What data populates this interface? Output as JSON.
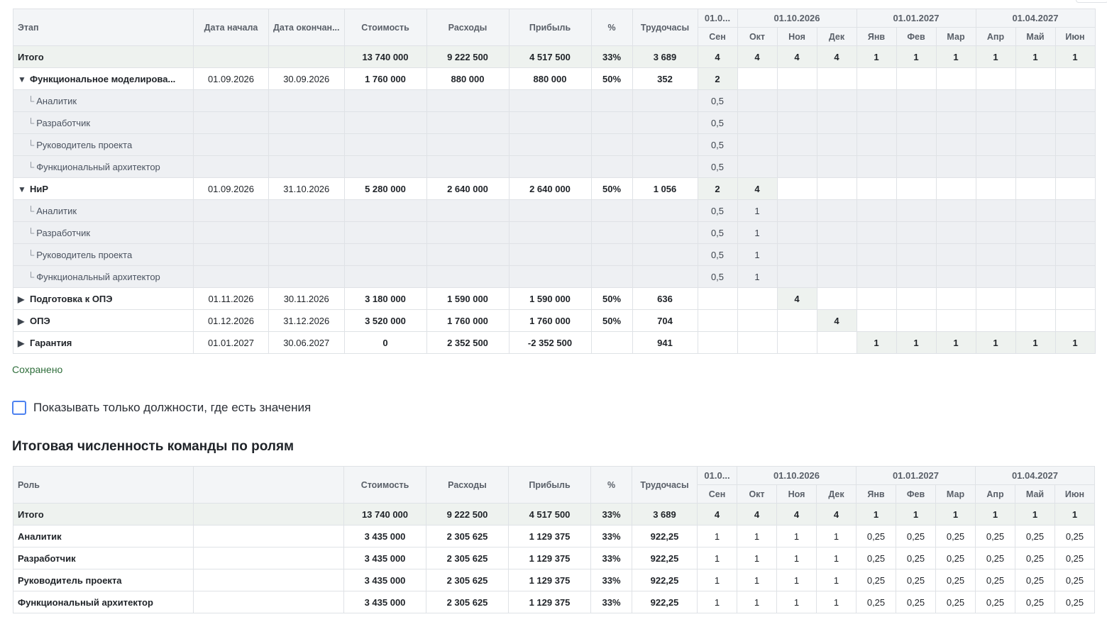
{
  "months": [
    "Сен",
    "Окт",
    "Ноя",
    "Дек",
    "Янв",
    "Фев",
    "Мар",
    "Апр",
    "Май",
    "Июн"
  ],
  "year_groups": [
    "01.0...",
    "01.10.2026",
    "01.01.2027",
    "01.04.2027"
  ],
  "table1": {
    "headers": {
      "stage": "Этап",
      "start": "Дата начала",
      "end": "Дата окончан...",
      "cost": "Стоимость",
      "expenses": "Расходы",
      "profit": "Прибыль",
      "pct": "%",
      "hours": "Трудочасы"
    },
    "rows": [
      {
        "type": "total",
        "name": "Итого",
        "start": "",
        "end": "",
        "cost": "13 740 000",
        "expenses": "9 222 500",
        "profit": "4 517 500",
        "pct": "33%",
        "hours": "3 689",
        "months": [
          "4",
          "4",
          "4",
          "4",
          "1",
          "1",
          "1",
          "1",
          "1",
          "1"
        ]
      },
      {
        "type": "group",
        "expanded": true,
        "name": "Функциональное моделирова...",
        "start": "01.09.2026",
        "end": "30.09.2026",
        "cost": "1 760 000",
        "expenses": "880 000",
        "profit": "880 000",
        "pct": "50%",
        "hours": "352",
        "months": [
          "2",
          "",
          "",
          "",
          "",
          "",
          "",
          "",
          "",
          ""
        ]
      },
      {
        "type": "sub",
        "name": "Аналитик",
        "months": [
          "0,5",
          "",
          "",
          "",
          "",
          "",
          "",
          "",
          "",
          ""
        ]
      },
      {
        "type": "sub",
        "name": "Разработчик",
        "months": [
          "0,5",
          "",
          "",
          "",
          "",
          "",
          "",
          "",
          "",
          ""
        ]
      },
      {
        "type": "sub",
        "name": "Руководитель проекта",
        "months": [
          "0,5",
          "",
          "",
          "",
          "",
          "",
          "",
          "",
          "",
          ""
        ]
      },
      {
        "type": "sub",
        "name": "Функциональный архитектор",
        "months": [
          "0,5",
          "",
          "",
          "",
          "",
          "",
          "",
          "",
          "",
          ""
        ]
      },
      {
        "type": "group",
        "expanded": true,
        "name": "НиР",
        "start": "01.09.2026",
        "end": "31.10.2026",
        "cost": "5 280 000",
        "expenses": "2 640 000",
        "profit": "2 640 000",
        "pct": "50%",
        "hours": "1 056",
        "months": [
          "2",
          "4",
          "",
          "",
          "",
          "",
          "",
          "",
          "",
          ""
        ]
      },
      {
        "type": "sub",
        "name": "Аналитик",
        "months": [
          "0,5",
          "1",
          "",
          "",
          "",
          "",
          "",
          "",
          "",
          ""
        ]
      },
      {
        "type": "sub",
        "name": "Разработчик",
        "months": [
          "0,5",
          "1",
          "",
          "",
          "",
          "",
          "",
          "",
          "",
          ""
        ]
      },
      {
        "type": "sub",
        "name": "Руководитель проекта",
        "months": [
          "0,5",
          "1",
          "",
          "",
          "",
          "",
          "",
          "",
          "",
          ""
        ]
      },
      {
        "type": "sub",
        "name": "Функциональный архитектор",
        "months": [
          "0,5",
          "1",
          "",
          "",
          "",
          "",
          "",
          "",
          "",
          ""
        ]
      },
      {
        "type": "group",
        "expanded": false,
        "name": "Подготовка к ОПЭ",
        "start": "01.11.2026",
        "end": "30.11.2026",
        "cost": "3 180 000",
        "expenses": "1 590 000",
        "profit": "1 590 000",
        "pct": "50%",
        "hours": "636",
        "months": [
          "",
          "",
          "4",
          "",
          "",
          "",
          "",
          "",
          "",
          ""
        ]
      },
      {
        "type": "group",
        "expanded": false,
        "name": "ОПЭ",
        "start": "01.12.2026",
        "end": "31.12.2026",
        "cost": "3 520 000",
        "expenses": "1 760 000",
        "profit": "1 760 000",
        "pct": "50%",
        "hours": "704",
        "months": [
          "",
          "",
          "",
          "4",
          "",
          "",
          "",
          "",
          "",
          ""
        ]
      },
      {
        "type": "group",
        "expanded": false,
        "name": "Гарантия",
        "start": "01.01.2027",
        "end": "30.06.2027",
        "cost": "0",
        "expenses": "2 352 500",
        "profit": "-2 352 500",
        "pct": "",
        "hours": "941",
        "months": [
          "",
          "",
          "",
          "",
          "1",
          "1",
          "1",
          "1",
          "1",
          "1"
        ]
      }
    ]
  },
  "status": {
    "saved": "Сохранено"
  },
  "filter": {
    "label": "Показывать только должности, где есть значения"
  },
  "section2": {
    "title": "Итоговая численность команды по ролям"
  },
  "table2": {
    "headers": {
      "role": "Роль",
      "blank": "",
      "cost": "Стоимость",
      "expenses": "Расходы",
      "profit": "Прибыль",
      "pct": "%",
      "hours": "Трудочасы"
    },
    "rows": [
      {
        "type": "total",
        "name": "Итого",
        "cost": "13 740 000",
        "expenses": "9 222 500",
        "profit": "4 517 500",
        "pct": "33%",
        "hours": "3 689",
        "months": [
          "4",
          "4",
          "4",
          "4",
          "1",
          "1",
          "1",
          "1",
          "1",
          "1"
        ]
      },
      {
        "type": "role",
        "name": "Аналитик",
        "cost": "3 435 000",
        "expenses": "2 305 625",
        "profit": "1 129 375",
        "pct": "33%",
        "hours": "922,25",
        "months": [
          "1",
          "1",
          "1",
          "1",
          "0,25",
          "0,25",
          "0,25",
          "0,25",
          "0,25",
          "0,25"
        ]
      },
      {
        "type": "role",
        "name": "Разработчик",
        "cost": "3 435 000",
        "expenses": "2 305 625",
        "profit": "1 129 375",
        "pct": "33%",
        "hours": "922,25",
        "months": [
          "1",
          "1",
          "1",
          "1",
          "0,25",
          "0,25",
          "0,25",
          "0,25",
          "0,25",
          "0,25"
        ]
      },
      {
        "type": "role",
        "name": "Руководитель проекта",
        "cost": "3 435 000",
        "expenses": "2 305 625",
        "profit": "1 129 375",
        "pct": "33%",
        "hours": "922,25",
        "months": [
          "1",
          "1",
          "1",
          "1",
          "0,25",
          "0,25",
          "0,25",
          "0,25",
          "0,25",
          "0,25"
        ]
      },
      {
        "type": "role",
        "name": "Функциональный архитектор",
        "cost": "3 435 000",
        "expenses": "2 305 625",
        "profit": "1 129 375",
        "pct": "33%",
        "hours": "922,25",
        "months": [
          "1",
          "1",
          "1",
          "1",
          "0,25",
          "0,25",
          "0,25",
          "0,25",
          "0,25",
          "0,25"
        ]
      }
    ]
  }
}
